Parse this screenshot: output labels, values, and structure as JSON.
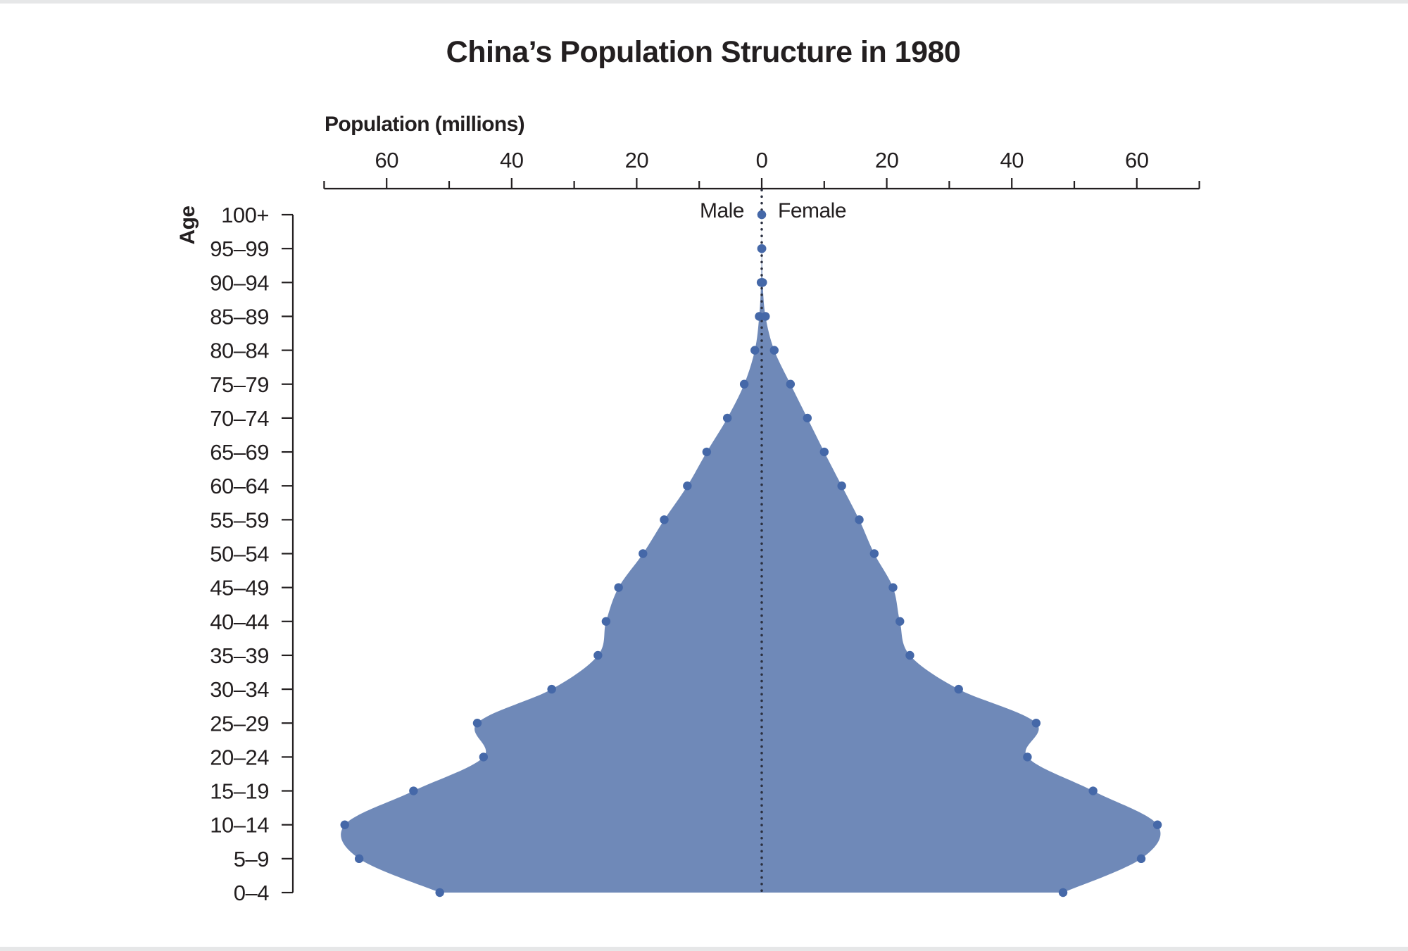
{
  "title": "China’s Population Structure in 1980",
  "colors": {
    "area": "#6f89b8",
    "point": "#4568a8",
    "center_line": "#2b3040",
    "text": "#231f20",
    "axis": "#231f20",
    "frame_band": "#e6e7e8"
  },
  "legend": {
    "male_label": "Male",
    "female_label": "Female"
  },
  "chart_data": {
    "type": "area",
    "subtype": "population-pyramid",
    "title": "China’s Population Structure in 1980",
    "xlabel": "Population (millions)",
    "ylabel": "Age",
    "x_ticks": [
      60,
      40,
      20,
      0,
      20,
      40,
      60
    ],
    "x_minor_ticks": [
      -70,
      -50,
      -30,
      -10,
      10,
      30,
      50,
      70
    ],
    "xlim": [
      -70,
      70
    ],
    "grid": false,
    "legend_position": "top-center",
    "categories": [
      "0–4",
      "5–9",
      "10–14",
      "15–19",
      "20–24",
      "25–29",
      "30–34",
      "35–39",
      "40–44",
      "45–49",
      "50–54",
      "55–59",
      "60–64",
      "65–69",
      "70–74",
      "75–79",
      "80–84",
      "85–89",
      "90–94",
      "95–99",
      "100+"
    ],
    "series": [
      {
        "name": "Male",
        "side": "left",
        "values": [
          51.5,
          64.4,
          66.7,
          55.7,
          44.5,
          45.5,
          33.6,
          26.2,
          24.9,
          22.9,
          19.0,
          15.6,
          11.9,
          8.8,
          5.5,
          2.8,
          1.1,
          0.4,
          0.1,
          0.02,
          0.0
        ]
      },
      {
        "name": "Female",
        "side": "right",
        "values": [
          48.2,
          60.7,
          63.3,
          53.0,
          42.5,
          43.9,
          31.5,
          23.7,
          22.1,
          21.0,
          18.0,
          15.6,
          12.8,
          10.0,
          7.3,
          4.6,
          2.0,
          0.6,
          0.15,
          0.03,
          0.0
        ]
      }
    ]
  }
}
